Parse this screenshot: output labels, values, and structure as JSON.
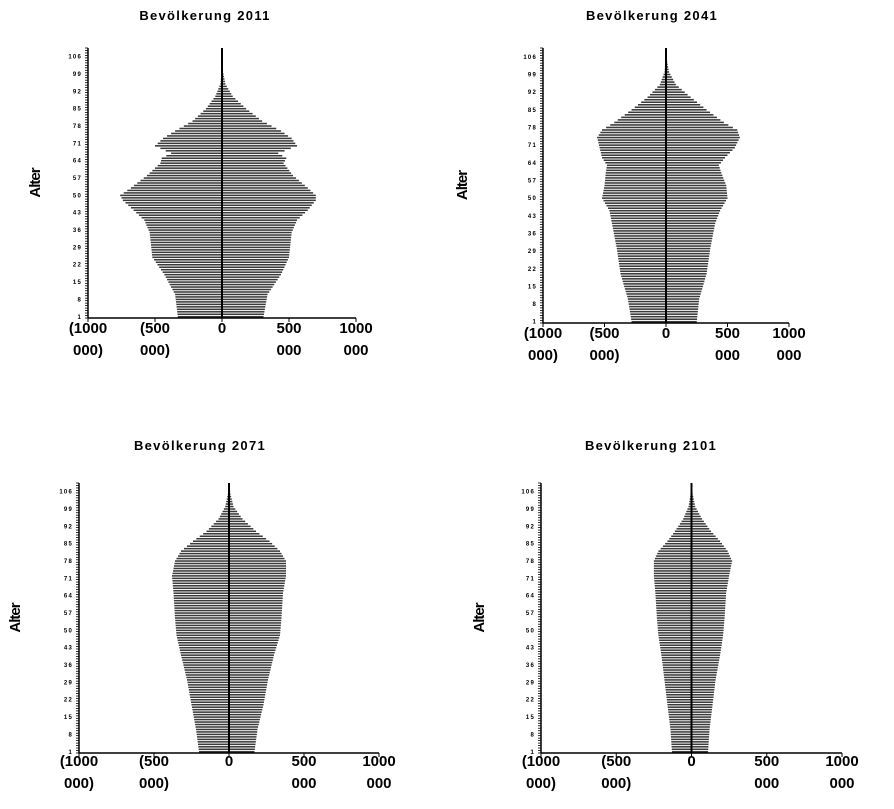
{
  "chart_data": [
    {
      "type": "bar",
      "orientation": "horizontal",
      "title": "Bevölkerung 2011",
      "ylabel": "Alter",
      "xlabel": "",
      "y_tick_labels": [
        "1",
        "8",
        "15",
        "22",
        "29",
        "36",
        "43",
        "50",
        "57",
        "64",
        "71",
        "78",
        "85",
        "92",
        "99",
        "106"
      ],
      "x_tick_labels": [
        {
          "value": -1000000,
          "lines": [
            "(1000",
            "000)"
          ]
        },
        {
          "value": -500000,
          "lines": [
            "(500",
            "000)"
          ]
        },
        {
          "value": 0,
          "lines": [
            "0",
            ""
          ]
        },
        {
          "value": 500000,
          "lines": [
            "500",
            "000"
          ]
        },
        {
          "value": 1000000,
          "lines": [
            "1000",
            "000"
          ]
        }
      ],
      "xlim": [
        -1000000,
        1000000
      ],
      "ylim": [
        1,
        110
      ],
      "profile_left": [
        [
          1,
          330000
        ],
        [
          10,
          350000
        ],
        [
          18,
          430000
        ],
        [
          25,
          520000
        ],
        [
          35,
          540000
        ],
        [
          40,
          580000
        ],
        [
          44,
          660000
        ],
        [
          48,
          740000
        ],
        [
          50,
          760000
        ],
        [
          53,
          680000
        ],
        [
          58,
          560000
        ],
        [
          63,
          460000
        ],
        [
          65,
          450000
        ],
        [
          67,
          380000
        ],
        [
          70,
          500000
        ],
        [
          73,
          440000
        ],
        [
          76,
          350000
        ],
        [
          80,
          220000
        ],
        [
          85,
          120000
        ],
        [
          90,
          50000
        ],
        [
          95,
          12000
        ],
        [
          100,
          4000
        ],
        [
          105,
          2000
        ],
        [
          109,
          0
        ]
      ],
      "profile_right": [
        [
          1,
          310000
        ],
        [
          10,
          340000
        ],
        [
          18,
          440000
        ],
        [
          25,
          500000
        ],
        [
          35,
          520000
        ],
        [
          40,
          560000
        ],
        [
          44,
          640000
        ],
        [
          48,
          700000
        ],
        [
          50,
          700000
        ],
        [
          53,
          640000
        ],
        [
          58,
          530000
        ],
        [
          63,
          460000
        ],
        [
          65,
          480000
        ],
        [
          67,
          420000
        ],
        [
          70,
          560000
        ],
        [
          73,
          520000
        ],
        [
          76,
          440000
        ],
        [
          80,
          300000
        ],
        [
          85,
          180000
        ],
        [
          90,
          80000
        ],
        [
          95,
          25000
        ],
        [
          100,
          8000
        ],
        [
          105,
          3000
        ],
        [
          109,
          0
        ]
      ]
    },
    {
      "type": "bar",
      "orientation": "horizontal",
      "title": "Bevölkerung 2041",
      "ylabel": "Alter",
      "xlabel": "",
      "y_tick_labels": [
        "1",
        "8",
        "15",
        "22",
        "29",
        "36",
        "43",
        "50",
        "57",
        "64",
        "71",
        "78",
        "85",
        "92",
        "99",
        "106"
      ],
      "x_tick_labels": [
        {
          "value": -1000000,
          "lines": [
            "(1000",
            "000)"
          ]
        },
        {
          "value": -500000,
          "lines": [
            "(500",
            "000)"
          ]
        },
        {
          "value": 0,
          "lines": [
            "0",
            ""
          ]
        },
        {
          "value": 500000,
          "lines": [
            "500",
            "000"
          ]
        },
        {
          "value": 1000000,
          "lines": [
            "1000",
            "000"
          ]
        }
      ],
      "xlim": [
        -1000000,
        1000000
      ],
      "ylim": [
        1,
        110
      ],
      "profile_left": [
        [
          1,
          280000
        ],
        [
          10,
          310000
        ],
        [
          20,
          370000
        ],
        [
          30,
          400000
        ],
        [
          40,
          440000
        ],
        [
          45,
          460000
        ],
        [
          50,
          520000
        ],
        [
          55,
          500000
        ],
        [
          60,
          490000
        ],
        [
          63,
          480000
        ],
        [
          66,
          520000
        ],
        [
          70,
          540000
        ],
        [
          74,
          560000
        ],
        [
          77,
          520000
        ],
        [
          80,
          420000
        ],
        [
          85,
          280000
        ],
        [
          90,
          150000
        ],
        [
          95,
          50000
        ],
        [
          100,
          12000
        ],
        [
          105,
          4000
        ],
        [
          109,
          0
        ]
      ],
      "profile_right": [
        [
          1,
          250000
        ],
        [
          10,
          270000
        ],
        [
          20,
          330000
        ],
        [
          30,
          360000
        ],
        [
          40,
          400000
        ],
        [
          45,
          440000
        ],
        [
          50,
          500000
        ],
        [
          55,
          490000
        ],
        [
          60,
          450000
        ],
        [
          63,
          430000
        ],
        [
          66,
          480000
        ],
        [
          70,
          560000
        ],
        [
          74,
          600000
        ],
        [
          77,
          580000
        ],
        [
          80,
          470000
        ],
        [
          85,
          330000
        ],
        [
          90,
          200000
        ],
        [
          95,
          80000
        ],
        [
          100,
          25000
        ],
        [
          105,
          6000
        ],
        [
          109,
          0
        ]
      ]
    },
    {
      "type": "bar",
      "orientation": "horizontal",
      "title": "Bevölkerung 2071",
      "ylabel": "Alter",
      "xlabel": "",
      "y_tick_labels": [
        "1",
        "8",
        "15",
        "22",
        "29",
        "36",
        "43",
        "50",
        "57",
        "64",
        "71",
        "78",
        "85",
        "92",
        "99",
        "106"
      ],
      "x_tick_labels": [
        {
          "value": -1000000,
          "lines": [
            "(1000",
            "000)"
          ]
        },
        {
          "value": -500000,
          "lines": [
            "(500",
            "000)"
          ]
        },
        {
          "value": 0,
          "lines": [
            "0",
            ""
          ]
        },
        {
          "value": 500000,
          "lines": [
            "500",
            "000"
          ]
        },
        {
          "value": 1000000,
          "lines": [
            "1000",
            "000"
          ]
        }
      ],
      "xlim": [
        -1000000,
        1000000
      ],
      "ylim": [
        1,
        110
      ],
      "profile_left": [
        [
          1,
          200000
        ],
        [
          10,
          220000
        ],
        [
          20,
          250000
        ],
        [
          30,
          280000
        ],
        [
          40,
          320000
        ],
        [
          48,
          350000
        ],
        [
          55,
          360000
        ],
        [
          65,
          370000
        ],
        [
          72,
          380000
        ],
        [
          78,
          360000
        ],
        [
          82,
          320000
        ],
        [
          86,
          240000
        ],
        [
          90,
          150000
        ],
        [
          95,
          70000
        ],
        [
          100,
          25000
        ],
        [
          105,
          8000
        ],
        [
          109,
          0
        ]
      ],
      "profile_right": [
        [
          1,
          170000
        ],
        [
          10,
          190000
        ],
        [
          20,
          230000
        ],
        [
          30,
          260000
        ],
        [
          40,
          300000
        ],
        [
          48,
          340000
        ],
        [
          55,
          350000
        ],
        [
          65,
          360000
        ],
        [
          72,
          380000
        ],
        [
          78,
          380000
        ],
        [
          82,
          340000
        ],
        [
          86,
          270000
        ],
        [
          90,
          180000
        ],
        [
          95,
          90000
        ],
        [
          100,
          30000
        ],
        [
          105,
          10000
        ],
        [
          109,
          0
        ]
      ]
    },
    {
      "type": "bar",
      "orientation": "horizontal",
      "title": "Bevölkerung 2101",
      "ylabel": "Alter",
      "xlabel": "",
      "y_tick_labels": [
        "1",
        "8",
        "15",
        "22",
        "29",
        "36",
        "43",
        "50",
        "57",
        "64",
        "71",
        "78",
        "85",
        "92",
        "99",
        "106"
      ],
      "x_tick_labels": [
        {
          "value": -1000000,
          "lines": [
            "(1000",
            "000)"
          ]
        },
        {
          "value": -500000,
          "lines": [
            "(500",
            "000)"
          ]
        },
        {
          "value": 0,
          "lines": [
            "0",
            ""
          ]
        },
        {
          "value": 500000,
          "lines": [
            "500",
            "000"
          ]
        },
        {
          "value": 1000000,
          "lines": [
            "1000",
            "000"
          ]
        }
      ],
      "xlim": [
        -1000000,
        1000000
      ],
      "ylim": [
        1,
        110
      ],
      "profile_left": [
        [
          1,
          130000
        ],
        [
          10,
          140000
        ],
        [
          20,
          160000
        ],
        [
          30,
          180000
        ],
        [
          40,
          200000
        ],
        [
          48,
          220000
        ],
        [
          55,
          230000
        ],
        [
          65,
          240000
        ],
        [
          72,
          250000
        ],
        [
          78,
          250000
        ],
        [
          82,
          220000
        ],
        [
          86,
          160000
        ],
        [
          90,
          110000
        ],
        [
          95,
          55000
        ],
        [
          100,
          20000
        ],
        [
          105,
          6000
        ],
        [
          109,
          0
        ]
      ],
      "profile_right": [
        [
          1,
          110000
        ],
        [
          10,
          120000
        ],
        [
          20,
          140000
        ],
        [
          30,
          160000
        ],
        [
          40,
          190000
        ],
        [
          48,
          210000
        ],
        [
          55,
          220000
        ],
        [
          65,
          230000
        ],
        [
          72,
          250000
        ],
        [
          78,
          270000
        ],
        [
          82,
          240000
        ],
        [
          86,
          190000
        ],
        [
          90,
          130000
        ],
        [
          95,
          70000
        ],
        [
          100,
          25000
        ],
        [
          105,
          8000
        ],
        [
          109,
          0
        ]
      ]
    }
  ]
}
